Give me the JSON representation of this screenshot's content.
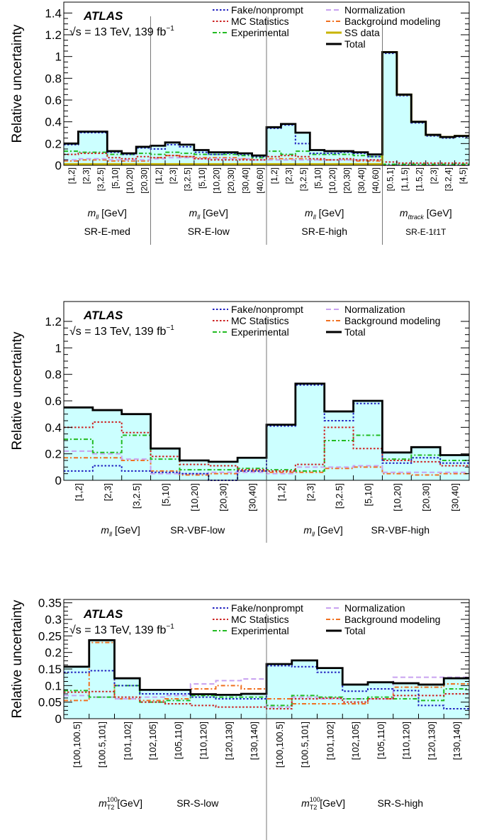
{
  "figure": {
    "experiment": "ATLAS",
    "energy_label": "√s = 13 TeV, 139 fb",
    "lumi_superscript": "−1",
    "ylabel": "Relative uncertainty"
  },
  "legend": {
    "fake": {
      "label": "Fake/nonprompt",
      "color": "#1f1fbf",
      "dash": "dotted"
    },
    "mcstat": {
      "label": "MC Statistics",
      "color": "#cc2222",
      "dash": "dotted"
    },
    "experimental": {
      "label": "Experimental",
      "color": "#22bb22",
      "dash": "dash-dot"
    },
    "normalization": {
      "label": "Normalization",
      "color": "#c8a2f0",
      "dash": "dashed"
    },
    "bkgmodel": {
      "label": "Background modeling",
      "color": "#f07020",
      "dash": "dash-dot"
    },
    "ssdata": {
      "label": "SS data",
      "color": "#c8b400",
      "dash": "solid"
    },
    "total": {
      "label": "Total",
      "color": "#000000",
      "dash": "solid"
    }
  },
  "colors": {
    "total_fill": "#ccffff"
  },
  "chart_data": [
    {
      "type": "line",
      "step": true,
      "ylim": [
        0,
        1.5
      ],
      "yticks": [
        0,
        0.2,
        0.4,
        0.6,
        0.8,
        1,
        1.2,
        1.4
      ],
      "ytick_labels": [
        "0",
        "0.2",
        "0.4",
        "0.6",
        "0.8",
        "1",
        "1.2",
        "1.4"
      ],
      "legend_keys": [
        "fake",
        "mcstat",
        "experimental",
        "normalization",
        "bkgmodel",
        "ssdata",
        "total"
      ],
      "bin_labels": [
        "[1,2]",
        "[2,3]",
        "[3,2.5]",
        "[5,10]",
        "[10,20]",
        "[20,30]",
        "[1,2]",
        "[2,3]",
        "[3,2.5]",
        "[5,10]",
        "[10,20]",
        "[20,30]",
        "[30,40]",
        "[40,60]",
        "[1,2]",
        "[2,3]",
        "[3,2.5]",
        "[5,10]",
        "[10,20]",
        "[20,30]",
        "[30,40]",
        "[40,60]",
        "[0.5,1]",
        "[1,1.5]",
        "[1.5,2]",
        "[2,3]",
        "[3.2,4]",
        "[4,5]"
      ],
      "regions": [
        {
          "variable": "m",
          "sub": "ll",
          "unit": " [GeV]",
          "name": "SR-E-med",
          "bins": 6
        },
        {
          "variable": "m",
          "sub": "ll",
          "unit": " [GeV]",
          "name": "SR-E-low",
          "bins": 8
        },
        {
          "variable": "m",
          "sub": "ll",
          "unit": " [GeV]",
          "name": "SR-E-high",
          "bins": 8
        },
        {
          "variable": "m",
          "sub": "ℓtrack",
          "unit": " [GeV]",
          "name": "SR-E-1ℓ1T",
          "bins": 6
        }
      ],
      "series": [
        {
          "key": "total",
          "values": [
            0.2,
            0.31,
            0.31,
            0.13,
            0.11,
            0.17,
            0.18,
            0.21,
            0.19,
            0.14,
            0.12,
            0.12,
            0.11,
            0.09,
            0.35,
            0.38,
            0.3,
            0.14,
            0.13,
            0.13,
            0.12,
            0.1,
            1.04,
            0.65,
            0.4,
            0.28,
            0.26,
            0.27
          ]
        },
        {
          "key": "fake",
          "values": [
            0.19,
            0.3,
            0.3,
            0.12,
            0.1,
            0.16,
            0.15,
            0.19,
            0.17,
            0.12,
            0.1,
            0.11,
            0.1,
            0.08,
            0.34,
            0.37,
            0.2,
            0.11,
            0.11,
            0.12,
            0.11,
            0.08,
            1.03,
            0.64,
            0.39,
            0.27,
            0.25,
            0.26
          ]
        },
        {
          "key": "mcstat",
          "values": [
            0.1,
            0.11,
            0.11,
            0.07,
            0.06,
            0.08,
            0.07,
            0.09,
            0.08,
            0.06,
            0.05,
            0.05,
            0.05,
            0.05,
            0.08,
            0.09,
            0.08,
            0.06,
            0.05,
            0.06,
            0.05,
            0.05,
            0.03,
            0.02,
            0.02,
            0.02,
            0.02,
            0.02
          ]
        },
        {
          "key": "experimental",
          "values": [
            0.13,
            0.12,
            0.12,
            0.1,
            0.1,
            0.11,
            0.1,
            0.12,
            0.11,
            0.1,
            0.1,
            0.1,
            0.09,
            0.07,
            0.13,
            0.1,
            0.13,
            0.1,
            0.1,
            0.1,
            0.09,
            0.08,
            0.01,
            0.01,
            0.01,
            0.01,
            0.01,
            0.01
          ]
        },
        {
          "key": "normalization",
          "values": [
            0.05,
            0.06,
            0.06,
            0.05,
            0.05,
            0.05,
            0.06,
            0.07,
            0.07,
            0.06,
            0.06,
            0.06,
            0.06,
            0.05,
            0.05,
            0.05,
            0.05,
            0.05,
            0.05,
            0.05,
            0.05,
            0.05,
            0.0,
            0.0,
            0.0,
            0.0,
            0.0,
            0.0
          ]
        },
        {
          "key": "bkgmodel",
          "values": [
            0.04,
            0.05,
            0.05,
            0.04,
            0.04,
            0.04,
            0.07,
            0.09,
            0.08,
            0.07,
            0.07,
            0.07,
            0.06,
            0.05,
            0.06,
            0.06,
            0.06,
            0.05,
            0.05,
            0.05,
            0.04,
            0.04,
            0.0,
            0.0,
            0.0,
            0.0,
            0.0,
            0.0
          ]
        },
        {
          "key": "ssdata",
          "values": [
            0.01,
            0.01,
            0.01,
            0.01,
            0.01,
            0.01,
            0.01,
            0.01,
            0.01,
            0.01,
            0.01,
            0.01,
            0.01,
            0.01,
            0.01,
            0.01,
            0.01,
            0.01,
            0.01,
            0.01,
            0.01,
            0.01,
            1.04,
            0.65,
            0.4,
            0.28,
            0.26,
            0.27
          ]
        }
      ]
    },
    {
      "type": "line",
      "step": true,
      "ylim": [
        0,
        1.35
      ],
      "yticks": [
        0,
        0.2,
        0.4,
        0.6,
        0.8,
        1,
        1.2
      ],
      "ytick_labels": [
        "0",
        "0.2",
        "0.4",
        "0.6",
        "0.8",
        "1",
        "1.2"
      ],
      "legend_keys": [
        "fake",
        "mcstat",
        "experimental",
        "normalization",
        "bkgmodel",
        "total"
      ],
      "bin_labels": [
        "[1,2]",
        "[2,3]",
        "[3,2.5]",
        "[5,10]",
        "[10,20]",
        "[20,30]",
        "[30,40]",
        "[1,2]",
        "[2,3]",
        "[3,2.5]",
        "[5,10]",
        "[10,20]",
        "[20,30]",
        "[30,40]"
      ],
      "regions": [
        {
          "variable": "m",
          "sub": "ll",
          "unit": " [GeV]",
          "name": "SR-VBF-low",
          "bins": 7
        },
        {
          "variable": "m",
          "sub": "ll",
          "unit": " [GeV]",
          "name": "SR-VBF-high",
          "bins": 7
        }
      ],
      "series": [
        {
          "key": "total",
          "values": [
            0.55,
            0.53,
            0.5,
            0.24,
            0.15,
            0.14,
            0.17,
            0.42,
            0.73,
            0.52,
            0.6,
            0.21,
            0.25,
            0.19
          ]
        },
        {
          "key": "fake",
          "values": [
            0.07,
            0.11,
            0.07,
            0.06,
            0.05,
            0.0,
            0.07,
            0.41,
            0.72,
            0.45,
            0.58,
            0.13,
            0.17,
            0.13
          ]
        },
        {
          "key": "mcstat",
          "values": [
            0.4,
            0.44,
            0.36,
            0.18,
            0.12,
            0.11,
            0.08,
            0.07,
            0.12,
            0.4,
            0.24,
            0.15,
            0.14,
            0.11
          ]
        },
        {
          "key": "experimental",
          "values": [
            0.31,
            0.21,
            0.34,
            0.16,
            0.08,
            0.08,
            0.09,
            0.08,
            0.07,
            0.3,
            0.34,
            0.16,
            0.19,
            0.15
          ]
        },
        {
          "key": "normalization",
          "values": [
            0.22,
            0.2,
            0.16,
            0.05,
            0.05,
            0.06,
            0.06,
            0.05,
            0.1,
            0.1,
            0.11,
            0.06,
            0.06,
            0.06
          ]
        },
        {
          "key": "bkgmodel",
          "values": [
            0.17,
            0.17,
            0.15,
            0.07,
            0.04,
            0.05,
            0.07,
            0.06,
            0.06,
            0.09,
            0.1,
            0.05,
            0.04,
            0.05
          ]
        }
      ]
    },
    {
      "type": "line",
      "step": true,
      "ylim": [
        0,
        0.36
      ],
      "yticks": [
        0,
        0.05,
        0.1,
        0.15,
        0.2,
        0.25,
        0.3,
        0.35
      ],
      "ytick_labels": [
        "0",
        "0.05",
        "0.1",
        "0.15",
        "0.2",
        "0.25",
        "0.3",
        "0.35"
      ],
      "legend_keys": [
        "fake",
        "mcstat",
        "experimental",
        "normalization",
        "bkgmodel",
        "total"
      ],
      "bin_labels": [
        "[100,100.5]",
        "[100.5,101]",
        "[101,102]",
        "[102,105]",
        "[105,110]",
        "[110,120]",
        "[120,130]",
        "[130,140]",
        "[100,100.5]",
        "[100.5,101]",
        "[101,102]",
        "[102,105]",
        "[105,110]",
        "[110,120]",
        "[120,130]",
        "[130,140]"
      ],
      "regions": [
        {
          "variable": "m",
          "sub": "T2",
          "sup": "100",
          "unit": " [GeV]",
          "name": "SR-S-low",
          "bins": 8
        },
        {
          "variable": "m",
          "sub": "T2",
          "sup": "100",
          "unit": " [GeV]",
          "name": "SR-S-high",
          "bins": 8
        }
      ],
      "series": [
        {
          "key": "total",
          "values": [
            0.157,
            0.237,
            0.122,
            0.087,
            0.087,
            0.074,
            0.072,
            0.075,
            0.165,
            0.176,
            0.153,
            0.103,
            0.11,
            0.107,
            0.103,
            0.122
          ]
        },
        {
          "key": "fake",
          "values": [
            0.14,
            0.145,
            0.1,
            0.075,
            0.075,
            0.065,
            0.06,
            0.06,
            0.16,
            0.157,
            0.14,
            0.083,
            0.09,
            0.085,
            0.04,
            0.03
          ]
        },
        {
          "key": "mcstat",
          "values": [
            0.08,
            0.082,
            0.065,
            0.05,
            0.045,
            0.04,
            0.035,
            0.035,
            0.03,
            0.06,
            0.062,
            0.05,
            0.06,
            0.07,
            0.07,
            0.075
          ]
        },
        {
          "key": "experimental",
          "values": [
            0.085,
            0.065,
            0.1,
            0.05,
            0.055,
            0.07,
            0.065,
            0.065,
            0.04,
            0.07,
            0.065,
            0.06,
            0.065,
            0.06,
            0.055,
            0.09
          ]
        },
        {
          "key": "normalization",
          "values": [
            0.07,
            0.065,
            0.06,
            0.065,
            0.07,
            0.105,
            0.115,
            0.12,
            0.035,
            0.065,
            0.06,
            0.06,
            0.06,
            0.125,
            0.125,
            0.125
          ]
        },
        {
          "key": "bkgmodel",
          "values": [
            0.055,
            0.23,
            0.06,
            0.055,
            0.06,
            0.09,
            0.1,
            0.09,
            0.06,
            0.045,
            0.045,
            0.045,
            0.06,
            0.095,
            0.095,
            0.105
          ]
        }
      ]
    }
  ]
}
